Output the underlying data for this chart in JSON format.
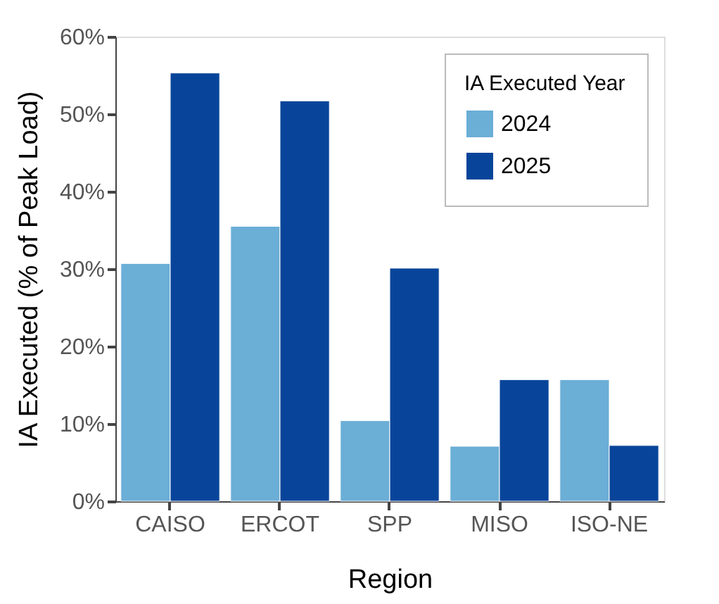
{
  "chart_data": {
    "type": "bar",
    "xlabel": "Region",
    "ylabel": "IA Executed (% of Peak Load)",
    "legend_title": "IA Executed Year",
    "categories": [
      "CAISO",
      "ERCOT",
      "SPP",
      "MISO",
      "ISO-NE"
    ],
    "series": [
      {
        "name": "2024",
        "color": "#6baed6",
        "values": [
          30.7,
          35.5,
          10.4,
          7.1,
          15.7
        ]
      },
      {
        "name": "2025",
        "color": "#08459a",
        "values": [
          55.3,
          51.7,
          30.1,
          15.7,
          7.2
        ]
      }
    ],
    "ylim": [
      0,
      60
    ],
    "yticks": [
      {
        "value": 0,
        "label": "0%"
      },
      {
        "value": 10,
        "label": "10%"
      },
      {
        "value": 20,
        "label": "20%"
      },
      {
        "value": 30,
        "label": "30%"
      },
      {
        "value": 40,
        "label": "40%"
      },
      {
        "value": 50,
        "label": "50%"
      },
      {
        "value": 60,
        "label": "60%"
      }
    ],
    "grid": false,
    "legend": "top right"
  }
}
